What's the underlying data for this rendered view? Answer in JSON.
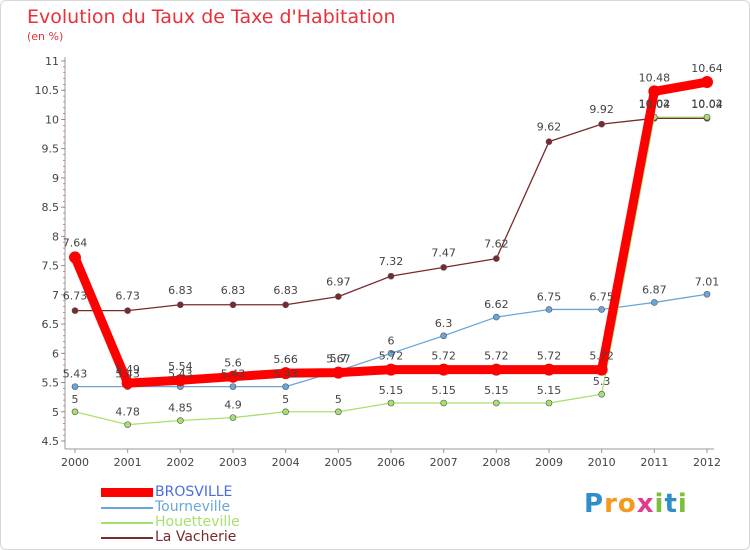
{
  "title": "Evolution du Taux de Taxe d'Habitation",
  "unit_label": "(en %)",
  "logo": {
    "text": "Proxiti",
    "letters": [
      {
        "ch": "P",
        "color": "#2f8ec9"
      },
      {
        "ch": "r",
        "color": "#f39a1d"
      },
      {
        "ch": "o",
        "color": "#f39a1d"
      },
      {
        "ch": "x",
        "color": "#e33b8c"
      },
      {
        "ch": "i",
        "color": "#7bbf3a"
      },
      {
        "ch": "t",
        "color": "#2f8ec9"
      },
      {
        "ch": "i",
        "color": "#7bbf3a"
      }
    ]
  },
  "chart_data": {
    "type": "line",
    "title": "Evolution du Taux de Taxe d'Habitation",
    "subtitle": "(en %)",
    "xlabel": "",
    "ylabel": "",
    "x": [
      "2000",
      "2001",
      "2002",
      "2003",
      "2004",
      "2005",
      "2006",
      "2007",
      "2008",
      "2009",
      "2010",
      "2011",
      "2012"
    ],
    "ylim": [
      4.5,
      11
    ],
    "yticks": [
      "4.5",
      "5",
      "5.5",
      "6",
      "6.5",
      "7",
      "7.5",
      "8",
      "8.5",
      "9",
      "9.5",
      "10",
      "10.5",
      "11"
    ],
    "grid": false,
    "legend_position": "bottom-left",
    "series": [
      {
        "name": "BROSVILLE",
        "color": "#ff0000",
        "legend_color": "#4a6de0",
        "values": [
          7.64,
          5.49,
          5.54,
          5.6,
          5.66,
          5.67,
          5.72,
          5.72,
          5.72,
          5.72,
          5.72,
          10.48,
          10.64
        ],
        "labels": [
          "7.64",
          "5.49",
          "5.54",
          "5.6",
          "5.66",
          "5.67",
          "5.72",
          "5.72",
          "5.72",
          "5.72",
          "5.72",
          "10.48",
          "10.64"
        ]
      },
      {
        "name": "Tourneville",
        "color": "#6aa6d8",
        "legend_color": "#6aa6d8",
        "values": [
          5.43,
          5.43,
          5.43,
          5.43,
          5.43,
          5.7,
          6.0,
          6.3,
          6.62,
          6.75,
          6.75,
          6.87,
          7.01
        ],
        "labels": [
          "5.43",
          "5.43",
          "5.43",
          "5.43",
          "5.43",
          "5.7",
          "6",
          "6.3",
          "6.62",
          "6.75",
          "6.75",
          "6.87",
          "7.01"
        ]
      },
      {
        "name": "Houetteville",
        "color": "#a8e070",
        "legend_color": "#a8e070",
        "values": [
          5.0,
          4.78,
          4.85,
          4.9,
          5.0,
          5.0,
          5.15,
          5.15,
          5.15,
          5.15,
          5.3,
          10.04,
          10.04
        ],
        "labels": [
          "5",
          "4.78",
          "4.85",
          "4.9",
          "5",
          "5",
          "5.15",
          "5.15",
          "5.15",
          "5.15",
          "5.3",
          "10.04",
          "10.04"
        ]
      },
      {
        "name": "La Vacherie",
        "color": "#7a2a2a",
        "legend_color": "#7a2a2a",
        "values": [
          6.73,
          6.73,
          6.83,
          6.83,
          6.83,
          6.97,
          7.32,
          7.47,
          7.62,
          9.62,
          9.92,
          10.02,
          10.02
        ],
        "labels": [
          "6.73",
          "6.73",
          "6.83",
          "6.83",
          "6.83",
          "6.97",
          "7.32",
          "7.47",
          "7.62",
          "9.62",
          "9.92",
          "10.02",
          "10.02"
        ]
      }
    ]
  }
}
